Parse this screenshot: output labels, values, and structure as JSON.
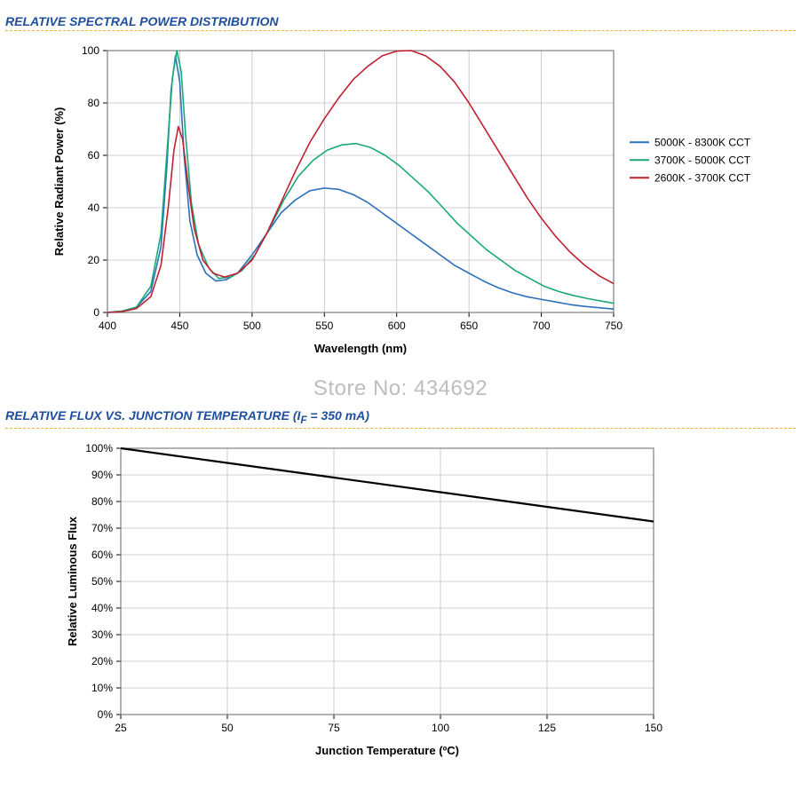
{
  "watermark": "Store No: 434692",
  "chart1": {
    "title": "RELATIVE SPECTRAL POWER DISTRIBUTION",
    "type": "line",
    "xlabel": "Wavelength (nm)",
    "ylabel": "Relative Radiant Power (%)",
    "xlim": [
      400,
      750
    ],
    "ylim": [
      0,
      100
    ],
    "xtick_step": 50,
    "ytick_step": 20,
    "background_color": "#ffffff",
    "grid_color": "#bfbfbf",
    "border_color": "#7f7f7f",
    "axis_fontsize": 13,
    "tick_fontsize": 12,
    "line_width": 1.6,
    "title_color": "#1f4e9c",
    "divider_color": "#f0b030",
    "legend": [
      {
        "label": "5000K - 8300K CCT",
        "color": "#2c6fbb"
      },
      {
        "label": "3700K - 5000K CCT",
        "color": "#18a87a"
      },
      {
        "label": "2600K - 3700K CCT",
        "color": "#c02030"
      }
    ],
    "series": [
      {
        "name": "5000K - 8300K CCT",
        "color": "#2c6fbb",
        "points": [
          [
            400,
            0
          ],
          [
            410,
            0.5
          ],
          [
            420,
            2
          ],
          [
            430,
            8
          ],
          [
            437,
            25
          ],
          [
            441,
            55
          ],
          [
            444,
            85
          ],
          [
            447,
            98
          ],
          [
            450,
            88
          ],
          [
            453,
            60
          ],
          [
            457,
            35
          ],
          [
            462,
            22
          ],
          [
            468,
            15
          ],
          [
            475,
            12
          ],
          [
            482,
            12.5
          ],
          [
            490,
            15
          ],
          [
            500,
            22
          ],
          [
            510,
            30
          ],
          [
            520,
            38
          ],
          [
            530,
            43
          ],
          [
            540,
            46.5
          ],
          [
            550,
            47.5
          ],
          [
            560,
            47
          ],
          [
            570,
            45
          ],
          [
            580,
            42
          ],
          [
            590,
            38
          ],
          [
            600,
            34
          ],
          [
            610,
            30
          ],
          [
            620,
            26
          ],
          [
            630,
            22
          ],
          [
            640,
            18
          ],
          [
            650,
            15
          ],
          [
            660,
            12
          ],
          [
            670,
            9.5
          ],
          [
            680,
            7.5
          ],
          [
            690,
            6
          ],
          [
            700,
            5
          ],
          [
            710,
            4
          ],
          [
            720,
            3
          ],
          [
            730,
            2.3
          ],
          [
            740,
            1.8
          ],
          [
            750,
            1.3
          ]
        ]
      },
      {
        "name": "3700K - 5000K CCT",
        "color": "#18a87a",
        "points": [
          [
            400,
            0
          ],
          [
            410,
            0.5
          ],
          [
            420,
            2
          ],
          [
            430,
            10
          ],
          [
            437,
            30
          ],
          [
            441,
            60
          ],
          [
            445,
            90
          ],
          [
            448,
            100
          ],
          [
            451,
            92
          ],
          [
            454,
            68
          ],
          [
            458,
            42
          ],
          [
            463,
            26
          ],
          [
            470,
            17
          ],
          [
            477,
            13
          ],
          [
            485,
            13.5
          ],
          [
            493,
            16
          ],
          [
            502,
            22
          ],
          [
            512,
            32
          ],
          [
            522,
            43
          ],
          [
            532,
            52
          ],
          [
            542,
            58
          ],
          [
            552,
            62
          ],
          [
            562,
            64
          ],
          [
            572,
            64.5
          ],
          [
            582,
            63
          ],
          [
            592,
            60
          ],
          [
            602,
            56
          ],
          [
            612,
            51
          ],
          [
            622,
            46
          ],
          [
            632,
            40
          ],
          [
            642,
            34
          ],
          [
            652,
            29
          ],
          [
            662,
            24
          ],
          [
            672,
            20
          ],
          [
            682,
            16
          ],
          [
            692,
            13
          ],
          [
            702,
            10
          ],
          [
            712,
            8
          ],
          [
            722,
            6.5
          ],
          [
            732,
            5.3
          ],
          [
            742,
            4.3
          ],
          [
            750,
            3.5
          ]
        ]
      },
      {
        "name": "2600K - 3700K CCT",
        "color": "#c02030",
        "points": [
          [
            400,
            0
          ],
          [
            410,
            0.3
          ],
          [
            420,
            1.5
          ],
          [
            430,
            6
          ],
          [
            437,
            18
          ],
          [
            442,
            40
          ],
          [
            446,
            62
          ],
          [
            449,
            71
          ],
          [
            452,
            66
          ],
          [
            456,
            48
          ],
          [
            460,
            32
          ],
          [
            466,
            20
          ],
          [
            473,
            15
          ],
          [
            481,
            13.5
          ],
          [
            490,
            15
          ],
          [
            500,
            20
          ],
          [
            510,
            30
          ],
          [
            520,
            42
          ],
          [
            530,
            54
          ],
          [
            540,
            65
          ],
          [
            550,
            74
          ],
          [
            560,
            82
          ],
          [
            570,
            89
          ],
          [
            580,
            94
          ],
          [
            590,
            98
          ],
          [
            600,
            99.8
          ],
          [
            610,
            100
          ],
          [
            620,
            98
          ],
          [
            630,
            94
          ],
          [
            640,
            88
          ],
          [
            650,
            80
          ],
          [
            660,
            71
          ],
          [
            670,
            62
          ],
          [
            680,
            53
          ],
          [
            690,
            44
          ],
          [
            700,
            36
          ],
          [
            710,
            29
          ],
          [
            720,
            23
          ],
          [
            730,
            18
          ],
          [
            740,
            14
          ],
          [
            750,
            11
          ]
        ]
      }
    ]
  },
  "chart2": {
    "title_prefix": "RELATIVE FLUX VS. JUNCTION TEMPERATURE (I",
    "title_sub": "F",
    "title_suffix": " = 350 mA)",
    "type": "line",
    "xlabel": "Junction Temperature (ºC)",
    "ylabel": "Relative Luminous Flux",
    "xlim": [
      25,
      150
    ],
    "ylim": [
      0,
      100
    ],
    "xtick_step": 25,
    "ytick_step": 10,
    "ytick_suffix": "%",
    "background_color": "#ffffff",
    "grid_color": "#bfbfbf",
    "border_color": "#7f7f7f",
    "axis_fontsize": 13,
    "tick_fontsize": 12,
    "line_width": 2.2,
    "title_color": "#1f4e9c",
    "divider_color": "#f0b030",
    "series": [
      {
        "name": "flux",
        "color": "#000000",
        "points": [
          [
            25,
            100
          ],
          [
            50,
            94.5
          ],
          [
            75,
            89
          ],
          [
            100,
            83.5
          ],
          [
            125,
            78
          ],
          [
            150,
            72.5
          ]
        ]
      }
    ]
  }
}
